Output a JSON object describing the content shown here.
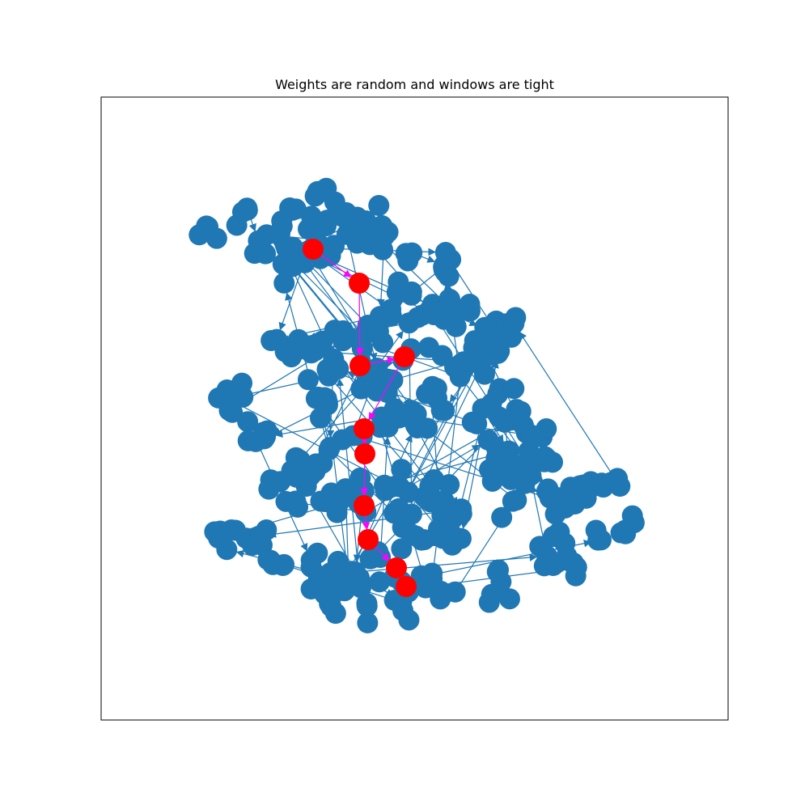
{
  "figure": {
    "title": "Weights are random and windows are tight"
  },
  "colors": {
    "node": "#1f77b4",
    "edge": "#1f77b4",
    "path_node": "#ff0000",
    "path_edge": "#ff00ff",
    "frame": "#000000",
    "background": "#ffffff"
  },
  "graph": {
    "kind": "directed network",
    "highlighted_path_color_name": "red",
    "node_count_visible_approx": 500
  }
}
